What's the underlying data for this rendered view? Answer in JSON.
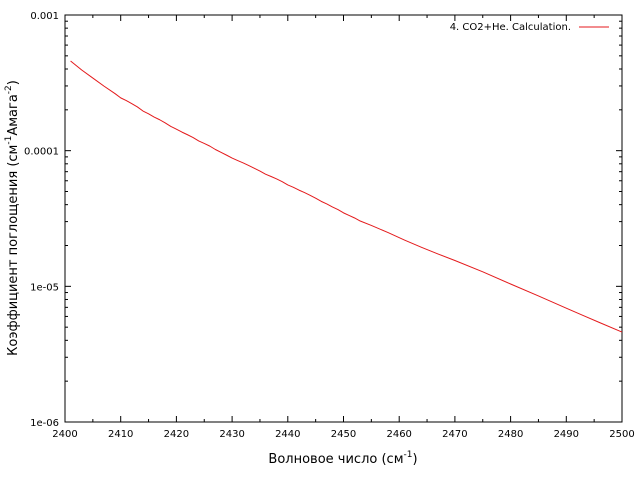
{
  "chart_data": {
    "type": "line",
    "xlabel": {
      "base": "Волновое число (см",
      "sup": "-1",
      "tail": ")"
    },
    "ylabel": {
      "base": "Коэффициент поглощения (см",
      "sup1": "-1",
      "mid": "Амага",
      "sup2": "-2",
      "tail": ")"
    },
    "xlim": [
      2400,
      2500
    ],
    "ylim": [
      1e-06,
      0.001
    ],
    "yscale": "log",
    "grid": false,
    "legend_position": "top-right",
    "xticks": [
      {
        "value": 2400,
        "label": "2400"
      },
      {
        "value": 2410,
        "label": "2410"
      },
      {
        "value": 2420,
        "label": "2420"
      },
      {
        "value": 2430,
        "label": "2430"
      },
      {
        "value": 2440,
        "label": "2440"
      },
      {
        "value": 2450,
        "label": "2450"
      },
      {
        "value": 2460,
        "label": "2460"
      },
      {
        "value": 2470,
        "label": "2470"
      },
      {
        "value": 2480,
        "label": "2480"
      },
      {
        "value": 2490,
        "label": "2490"
      },
      {
        "value": 2500,
        "label": "2500"
      }
    ],
    "yticks": [
      {
        "value": 0.001,
        "label": "0.001"
      },
      {
        "value": 0.0001,
        "label": "0.0001"
      },
      {
        "value": 1e-05,
        "label": "1e-05"
      },
      {
        "value": 1e-06,
        "label": "1e-06"
      }
    ],
    "series": [
      {
        "name": "4. CO2+He. Calculation.",
        "color": "#e41a1c",
        "x": [
          2401.0,
          2403.0,
          2405.0,
          2407.0,
          2409.0,
          2410.0,
          2411.0,
          2412.0,
          2413.0,
          2414.0,
          2415.0,
          2416.0,
          2417.0,
          2418.0,
          2419.0,
          2420.0,
          2421.0,
          2422.0,
          2423.0,
          2424.0,
          2425.0,
          2426.0,
          2427.0,
          2428.0,
          2429.0,
          2430.0,
          2431.0,
          2432.0,
          2433.0,
          2434.0,
          2435.0,
          2436.0,
          2437.0,
          2438.0,
          2439.0,
          2440.0,
          2441.0,
          2442.0,
          2443.0,
          2444.0,
          2445.0,
          2446.0,
          2447.0,
          2448.0,
          2449.0,
          2450.0,
          2451.0,
          2452.0,
          2453.0,
          2455.0,
          2458.0,
          2461.0,
          2464.0,
          2467.0,
          2470.0,
          2475.0,
          2480.0,
          2485.0,
          2490.0,
          2493.0,
          2496.0,
          2500.0
        ],
        "y": [
          0.000458,
          0.000393,
          0.000343,
          0.000299,
          0.000263,
          0.000245,
          0.000234,
          0.000222,
          0.00021,
          0.000196,
          0.000187,
          0.000177,
          0.000169,
          0.00016,
          0.000151,
          0.000144,
          0.000137,
          0.000131,
          0.000125,
          0.000118,
          0.000113,
          0.000108,
          0.000102,
          9.72e-05,
          9.27e-05,
          8.82e-05,
          8.46e-05,
          8.12e-05,
          7.76e-05,
          7.41e-05,
          7.07e-05,
          6.71e-05,
          6.45e-05,
          6.19e-05,
          5.91e-05,
          5.59e-05,
          5.37e-05,
          5.12e-05,
          4.91e-05,
          4.69e-05,
          4.46e-05,
          4.23e-05,
          4.05e-05,
          3.85e-05,
          3.68e-05,
          3.48e-05,
          3.33e-05,
          3.19e-05,
          3.03e-05,
          2.81e-05,
          2.49e-05,
          2.19e-05,
          1.94e-05,
          1.73e-05,
          1.55e-05,
          1.28e-05,
          1.04e-05,
          8.5e-06,
          6.9e-06,
          6.1e-06,
          5.4e-06,
          4.6e-06
        ]
      }
    ]
  }
}
